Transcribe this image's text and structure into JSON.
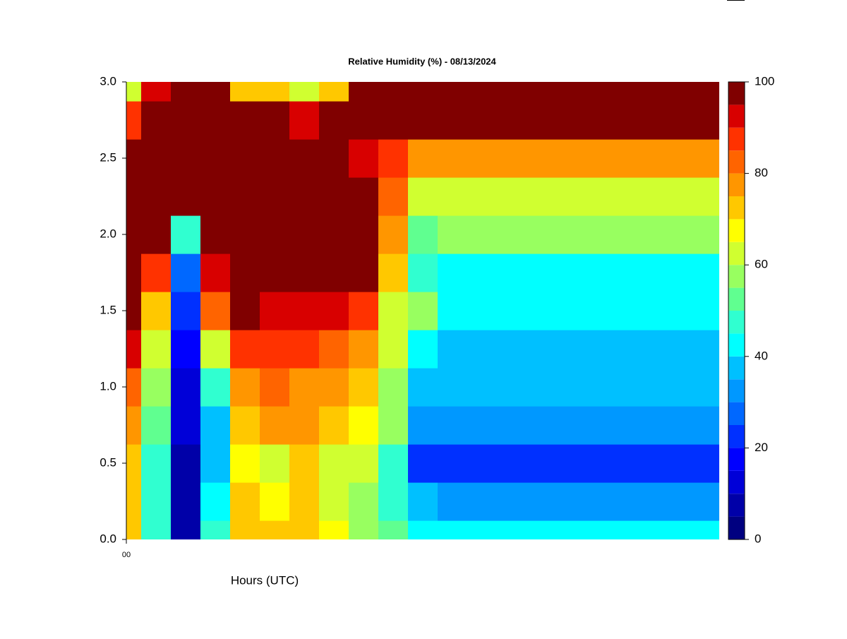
{
  "chart_data": {
    "type": "contour",
    "title": "Relative Humidity (%) - 08/13/2024",
    "xlabel": "Hours (UTC)",
    "xlim": [
      0,
      20
    ],
    "xticks": [
      {
        "value": 0,
        "label": "00"
      }
    ],
    "ylim": [
      0,
      3
    ],
    "yticks": [
      {
        "value": 0,
        "label": "0.0"
      },
      0.5,
      {
        "value": 1,
        "label": "1.0"
      },
      1.5,
      {
        "value": 2,
        "label": "2.0"
      },
      2.5,
      {
        "value": 3,
        "label": "3.0"
      }
    ],
    "x": [
      0,
      1,
      2,
      3,
      4,
      5,
      6,
      7,
      8,
      9,
      10,
      11,
      12,
      13,
      14,
      15,
      16,
      17,
      18,
      19,
      20
    ],
    "y": [
      0,
      0.25,
      0.5,
      0.75,
      1,
      1.25,
      1.5,
      1.75,
      2,
      2.25,
      2.5,
      2.75,
      3
    ],
    "values": [
      [
        72,
        72,
        70,
        76,
        82,
        90,
        98,
        98,
        98,
        98,
        98,
        85,
        62
      ],
      [
        45,
        45,
        45,
        50,
        55,
        60,
        70,
        85,
        96,
        98,
        98,
        95,
        90
      ],
      [
        5,
        5,
        5,
        10,
        12,
        15,
        20,
        28,
        45,
        98,
        98,
        98,
        98
      ],
      [
        45,
        40,
        35,
        38,
        45,
        62,
        80,
        90,
        98,
        98,
        98,
        98,
        98
      ],
      [
        70,
        70,
        68,
        72,
        78,
        88,
        98,
        98,
        98,
        98,
        98,
        98,
        70
      ],
      [
        70,
        68,
        60,
        75,
        80,
        88,
        94,
        98,
        98,
        98,
        98,
        96,
        70
      ],
      [
        70,
        70,
        70,
        75,
        78,
        85,
        92,
        98,
        98,
        98,
        98,
        92,
        62
      ],
      [
        68,
        62,
        62,
        70,
        75,
        84,
        92,
        98,
        98,
        98,
        98,
        95,
        72
      ],
      [
        55,
        58,
        62,
        65,
        70,
        78,
        86,
        95,
        96,
        95,
        92,
        98,
        98
      ],
      [
        50,
        48,
        48,
        55,
        58,
        60,
        62,
        70,
        78,
        82,
        86,
        98,
        98
      ],
      [
        42,
        35,
        20,
        33,
        38,
        42,
        55,
        48,
        52,
        60,
        78,
        98,
        98
      ],
      [
        42,
        32,
        20,
        32,
        35,
        38,
        44,
        42,
        55,
        62,
        78,
        98,
        98
      ],
      [
        42,
        32,
        20,
        32,
        35,
        38,
        44,
        42,
        55,
        62,
        78,
        98,
        98
      ],
      [
        42,
        32,
        20,
        32,
        35,
        38,
        44,
        42,
        55,
        62,
        78,
        98,
        98
      ],
      [
        42,
        32,
        20,
        32,
        35,
        38,
        44,
        42,
        55,
        62,
        78,
        98,
        98
      ],
      [
        42,
        32,
        20,
        32,
        35,
        38,
        44,
        42,
        55,
        62,
        78,
        98,
        98
      ],
      [
        42,
        32,
        20,
        32,
        35,
        38,
        44,
        42,
        55,
        62,
        78,
        98,
        98
      ],
      [
        42,
        32,
        20,
        32,
        35,
        38,
        44,
        42,
        55,
        62,
        78,
        98,
        98
      ],
      [
        42,
        32,
        20,
        30,
        35,
        38,
        44,
        42,
        55,
        62,
        78,
        98,
        98
      ],
      [
        42,
        32,
        20,
        32,
        35,
        38,
        44,
        42,
        55,
        62,
        78,
        98,
        98
      ],
      [
        42,
        32,
        20,
        32,
        35,
        38,
        44,
        42,
        55,
        62,
        78,
        98,
        98
      ]
    ],
    "levels": [
      0,
      5,
      10,
      15,
      20,
      25,
      30,
      35,
      40,
      45,
      50,
      55,
      60,
      65,
      70,
      75,
      80,
      85,
      90,
      95,
      100
    ],
    "colors": [
      "#000080",
      "#0000a8",
      "#0000d8",
      "#0000ff",
      "#0030ff",
      "#0068ff",
      "#0098ff",
      "#00c0ff",
      "#00ffff",
      "#30ffd0",
      "#60ff90",
      "#98ff60",
      "#d0ff30",
      "#ffff00",
      "#ffc800",
      "#ff9600",
      "#ff6400",
      "#ff3200",
      "#d80000",
      "#800000"
    ],
    "colorbar_ticks": [
      0,
      20,
      40,
      60,
      80,
      100
    ]
  }
}
